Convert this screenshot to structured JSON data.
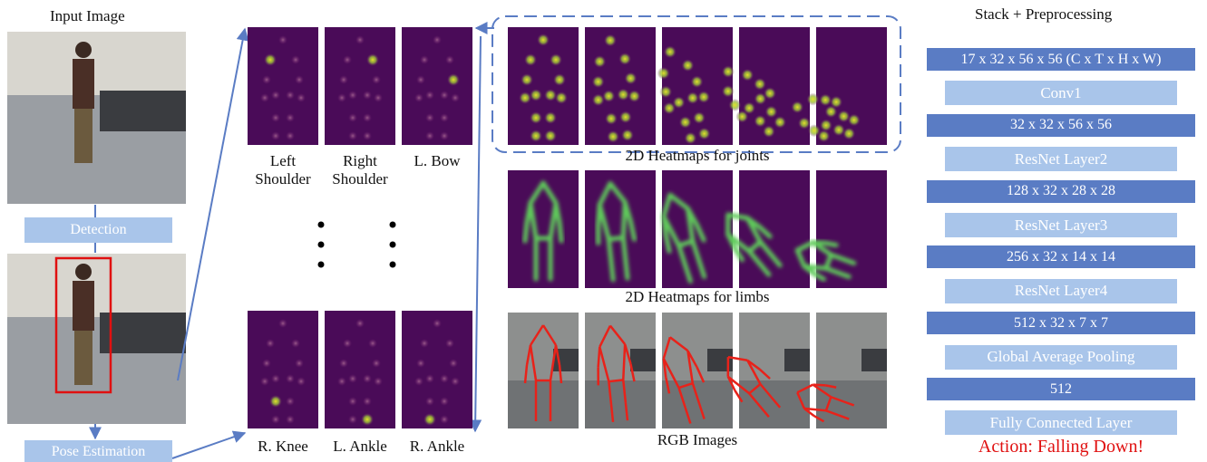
{
  "input": {
    "title": "Input Image",
    "detection": "Detection",
    "pose_estimation": "Pose Estimation"
  },
  "joint_heatmaps": {
    "top": [
      "Left Shoulder",
      "Right Shoulder",
      "L. Bow"
    ],
    "bottom": [
      "R. Knee",
      "L. Ankle",
      "R. Ankle"
    ]
  },
  "sequences": [
    "2D Heatmaps for joints",
    "2D Heatmaps for limbs",
    "RGB Images"
  ],
  "network": {
    "title": "Stack + Preprocessing",
    "layers": [
      "17 x 32 x 56 x 56 (C x T x H x W)",
      "Conv1",
      "32 x 32 x 56 x 56",
      "ResNet Layer2",
      "128 x 32 x 28 x 28",
      "ResNet Layer3",
      "256 x 32 x 14 x 14",
      "ResNet Layer4",
      "512 x 32 x 7 x 7",
      "Global Average Pooling",
      "512",
      "Fully Connected Layer"
    ],
    "output": "Action: Falling Down!"
  }
}
